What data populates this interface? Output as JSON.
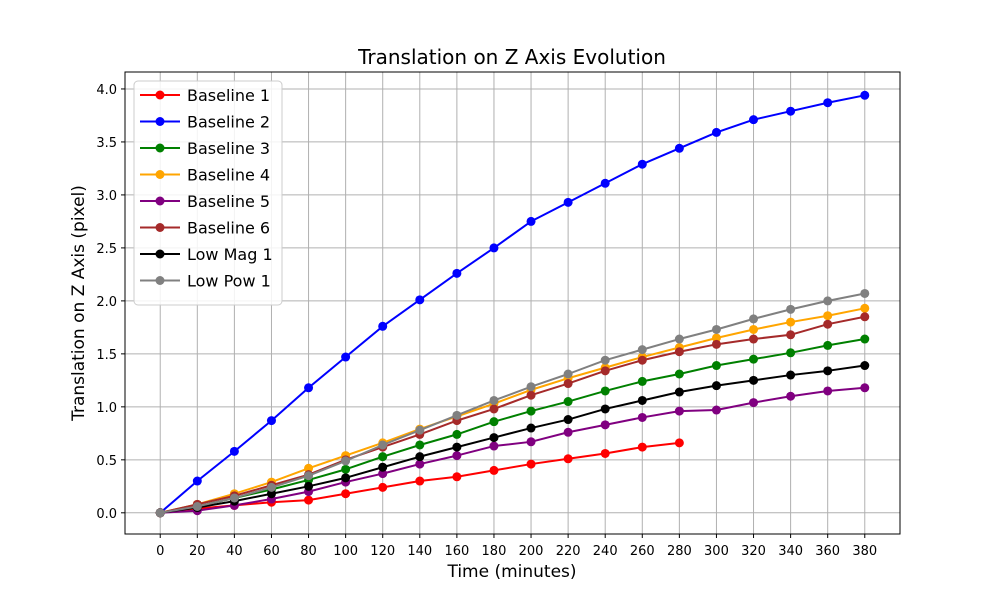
{
  "chart_data": {
    "type": "line",
    "title": "Translation on Z Axis Evolution",
    "xlabel": "Time (minutes)",
    "ylabel": "Translation on Z Axis (pixel)",
    "xlim": [
      -19,
      399
    ],
    "ylim": [
      -0.2,
      4.16
    ],
    "xticks": [
      0,
      20,
      40,
      60,
      80,
      100,
      120,
      140,
      160,
      180,
      200,
      220,
      240,
      260,
      280,
      300,
      320,
      340,
      360,
      380
    ],
    "yticks": [
      0.0,
      0.5,
      1.0,
      1.5,
      2.0,
      2.5,
      3.0,
      3.5,
      4.0
    ],
    "grid": true,
    "legend_position": "upper left",
    "series": [
      {
        "name": "Baseline 1",
        "color": "#ff0000",
        "x": [
          0,
          20,
          40,
          60,
          80,
          100,
          120,
          140,
          160,
          180,
          200,
          220,
          240,
          260,
          280
        ],
        "values": [
          0.0,
          0.04,
          0.07,
          0.1,
          0.12,
          0.18,
          0.24,
          0.3,
          0.34,
          0.4,
          0.46,
          0.51,
          0.56,
          0.62,
          0.66
        ]
      },
      {
        "name": "Baseline 2",
        "color": "#0000ff",
        "x": [
          0,
          20,
          40,
          60,
          80,
          100,
          120,
          140,
          160,
          180,
          200,
          220,
          240,
          260,
          280,
          300,
          320,
          340,
          360,
          380
        ],
        "values": [
          0.0,
          0.3,
          0.58,
          0.87,
          1.18,
          1.47,
          1.76,
          2.01,
          2.26,
          2.5,
          2.75,
          2.93,
          3.11,
          3.29,
          3.44,
          3.59,
          3.71,
          3.79,
          3.87,
          3.94
        ]
      },
      {
        "name": "Baseline 3",
        "color": "#008000",
        "x": [
          0,
          20,
          40,
          60,
          80,
          100,
          120,
          140,
          160,
          180,
          200,
          220,
          240,
          260,
          280,
          300,
          320,
          340,
          360,
          380
        ],
        "values": [
          0.0,
          0.06,
          0.14,
          0.22,
          0.31,
          0.41,
          0.53,
          0.64,
          0.74,
          0.86,
          0.96,
          1.05,
          1.15,
          1.24,
          1.31,
          1.39,
          1.45,
          1.51,
          1.58,
          1.64
        ]
      },
      {
        "name": "Baseline 4",
        "color": "#ffa500",
        "x": [
          0,
          20,
          40,
          60,
          80,
          100,
          120,
          140,
          160,
          180,
          200,
          220,
          240,
          260,
          280,
          300,
          320,
          340,
          360,
          380
        ],
        "values": [
          0.0,
          0.08,
          0.18,
          0.29,
          0.42,
          0.54,
          0.66,
          0.79,
          0.91,
          1.03,
          1.16,
          1.27,
          1.37,
          1.47,
          1.56,
          1.65,
          1.73,
          1.8,
          1.86,
          1.93
        ]
      },
      {
        "name": "Baseline 5",
        "color": "#800080",
        "x": [
          0,
          20,
          40,
          60,
          80,
          100,
          120,
          140,
          160,
          180,
          200,
          220,
          240,
          260,
          280,
          300,
          320,
          340,
          360,
          380
        ],
        "values": [
          0.0,
          0.02,
          0.07,
          0.13,
          0.2,
          0.29,
          0.37,
          0.46,
          0.54,
          0.63,
          0.67,
          0.76,
          0.83,
          0.9,
          0.96,
          0.97,
          1.04,
          1.1,
          1.15,
          1.18
        ]
      },
      {
        "name": "Baseline 6",
        "color": "#a52a2a",
        "x": [
          0,
          20,
          40,
          60,
          80,
          100,
          120,
          140,
          160,
          180,
          200,
          220,
          240,
          260,
          280,
          300,
          320,
          340,
          360,
          380
        ],
        "values": [
          0.0,
          0.08,
          0.16,
          0.26,
          0.36,
          0.5,
          0.62,
          0.74,
          0.87,
          0.98,
          1.11,
          1.22,
          1.34,
          1.44,
          1.52,
          1.59,
          1.64,
          1.68,
          1.78,
          1.85
        ]
      },
      {
        "name": "Low Mag 1",
        "color": "#000000",
        "x": [
          0,
          20,
          40,
          60,
          80,
          100,
          120,
          140,
          160,
          180,
          200,
          220,
          240,
          260,
          280,
          300,
          320,
          340,
          360,
          380
        ],
        "values": [
          0.0,
          0.05,
          0.11,
          0.18,
          0.25,
          0.33,
          0.43,
          0.53,
          0.62,
          0.71,
          0.8,
          0.88,
          0.98,
          1.06,
          1.14,
          1.2,
          1.25,
          1.3,
          1.34,
          1.39
        ]
      },
      {
        "name": "Low Pow 1",
        "color": "#808080",
        "x": [
          0,
          20,
          40,
          60,
          80,
          100,
          120,
          140,
          160,
          180,
          200,
          220,
          240,
          260,
          280,
          300,
          320,
          340,
          360,
          380
        ],
        "values": [
          0.0,
          0.06,
          0.14,
          0.24,
          0.35,
          0.49,
          0.64,
          0.78,
          0.92,
          1.06,
          1.19,
          1.31,
          1.44,
          1.54,
          1.64,
          1.73,
          1.83,
          1.92,
          2.0,
          2.07
        ]
      }
    ]
  }
}
